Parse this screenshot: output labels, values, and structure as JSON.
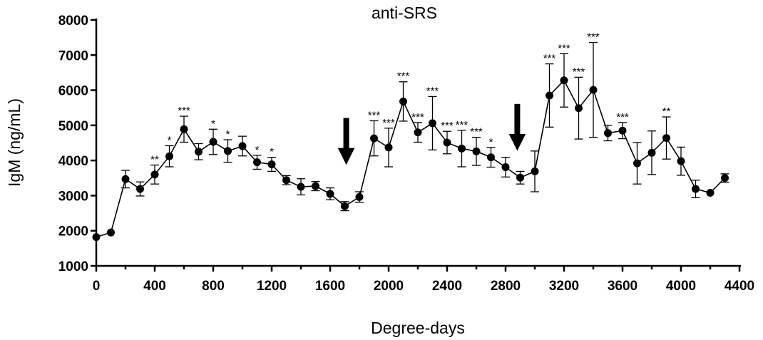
{
  "chart_data": {
    "type": "line",
    "title": "anti-SRS",
    "xlabel": "Degree-days",
    "ylabel": "IgM (ng/mL)",
    "xlim": [
      0,
      4400
    ],
    "ylim": [
      1000,
      8000
    ],
    "xticks": [
      0,
      400,
      800,
      1200,
      1600,
      2000,
      2400,
      2800,
      3200,
      3600,
      4000,
      4400
    ],
    "yticks": [
      1000,
      2000,
      3000,
      4000,
      5000,
      6000,
      7000,
      8000
    ],
    "series": [
      {
        "name": "anti-SRS IgM",
        "x": [
          0,
          100,
          200,
          300,
          400,
          500,
          600,
          700,
          800,
          900,
          1000,
          1100,
          1200,
          1300,
          1400,
          1500,
          1600,
          1700,
          1800,
          1900,
          2000,
          2100,
          2200,
          2300,
          2400,
          2500,
          2600,
          2700,
          2800,
          2900,
          3000,
          3100,
          3200,
          3300,
          3400,
          3500,
          3600,
          3700,
          3800,
          3900,
          4000,
          4100,
          4200,
          4300
        ],
        "y": [
          1820,
          1950,
          3470,
          3190,
          3600,
          4120,
          4890,
          4250,
          4530,
          4270,
          4410,
          3950,
          3890,
          3440,
          3250,
          3270,
          3050,
          2700,
          2960,
          4630,
          4370,
          5680,
          4800,
          5060,
          4510,
          4340,
          4260,
          4090,
          3810,
          3510,
          3690,
          5850,
          6280,
          5490,
          6010,
          4780,
          4850,
          3920,
          4220,
          4640,
          3980,
          3190,
          3080,
          3500
        ],
        "err": [
          0,
          0,
          250,
          200,
          270,
          300,
          370,
          230,
          360,
          320,
          280,
          200,
          200,
          130,
          230,
          130,
          170,
          130,
          150,
          500,
          550,
          560,
          280,
          760,
          320,
          520,
          400,
          280,
          280,
          180,
          580,
          900,
          760,
          880,
          1350,
          220,
          230,
          590,
          620,
          600,
          400,
          250,
          0,
          120
        ],
        "significance": [
          "",
          "",
          "",
          "",
          "**",
          "*",
          "***",
          "",
          "*",
          "*",
          "",
          "*",
          "*",
          "",
          "",
          "",
          "",
          "",
          "",
          "***",
          "***",
          "***",
          "***",
          "***",
          "***",
          "***",
          "***",
          "*",
          "",
          "",
          "",
          "***",
          "***",
          "***",
          "***",
          "",
          "***",
          "",
          "",
          "**",
          "",
          "",
          "",
          ""
        ]
      }
    ],
    "annotations": [
      {
        "type": "arrow",
        "direction": "down",
        "x": 1710,
        "y_top": 5200,
        "y_bottom": 3900
      },
      {
        "type": "arrow",
        "direction": "down",
        "x": 2880,
        "y_top": 5600,
        "y_bottom": 4300
      }
    ],
    "grid": false,
    "legend": "none"
  }
}
